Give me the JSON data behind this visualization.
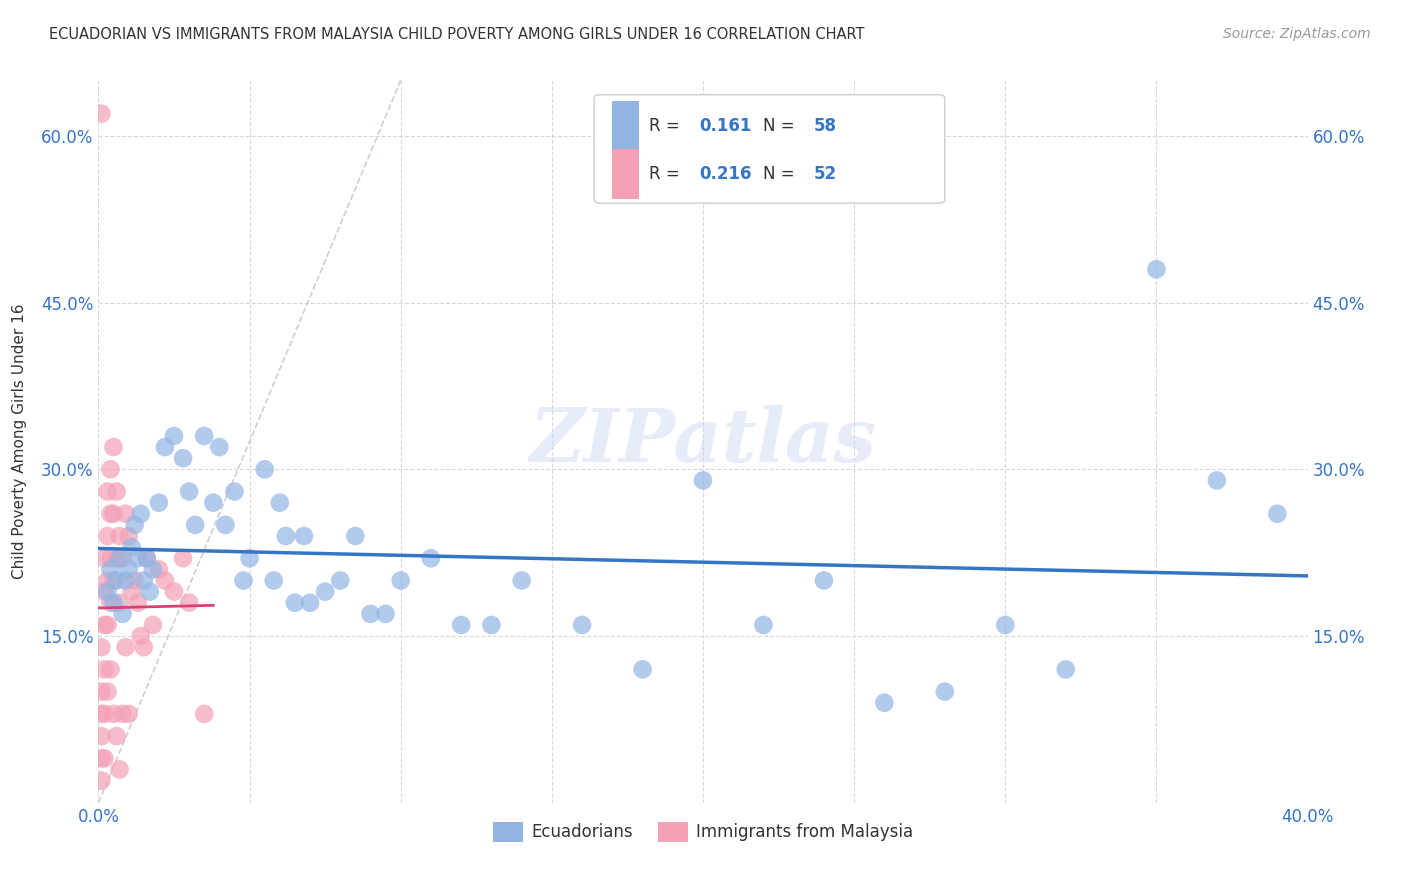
{
  "title": "ECUADORIAN VS IMMIGRANTS FROM MALAYSIA CHILD POVERTY AMONG GIRLS UNDER 16 CORRELATION CHART",
  "source": "Source: ZipAtlas.com",
  "ylabel": "Child Poverty Among Girls Under 16",
  "xlim": [
    0.0,
    0.4
  ],
  "ylim": [
    0.0,
    0.65
  ],
  "xticks": [
    0.0,
    0.05,
    0.1,
    0.15,
    0.2,
    0.25,
    0.3,
    0.35,
    0.4
  ],
  "yticks": [
    0.0,
    0.15,
    0.3,
    0.45,
    0.6
  ],
  "blue_R": "0.161",
  "blue_N": "58",
  "pink_R": "0.216",
  "pink_N": "52",
  "blue_color": "#92b4e3",
  "pink_color": "#f4a0b5",
  "blue_line_color": "#3575c8",
  "pink_line_color": "#d84070",
  "diagonal_color": "#c8c8d8",
  "legend_label_blue": "Ecuadorians",
  "legend_label_pink": "Immigrants from Malaysia",
  "blue_x": [
    0.003,
    0.004,
    0.005,
    0.006,
    0.007,
    0.008,
    0.009,
    0.01,
    0.011,
    0.012,
    0.013,
    0.014,
    0.015,
    0.016,
    0.017,
    0.018,
    0.02,
    0.022,
    0.025,
    0.028,
    0.03,
    0.032,
    0.035,
    0.038,
    0.04,
    0.042,
    0.045,
    0.048,
    0.05,
    0.055,
    0.058,
    0.06,
    0.062,
    0.065,
    0.068,
    0.07,
    0.075,
    0.08,
    0.085,
    0.09,
    0.095,
    0.1,
    0.11,
    0.12,
    0.13,
    0.14,
    0.16,
    0.18,
    0.2,
    0.22,
    0.24,
    0.26,
    0.28,
    0.3,
    0.32,
    0.35,
    0.37,
    0.39
  ],
  "blue_y": [
    0.19,
    0.21,
    0.18,
    0.2,
    0.22,
    0.17,
    0.2,
    0.21,
    0.23,
    0.25,
    0.22,
    0.26,
    0.2,
    0.22,
    0.19,
    0.21,
    0.27,
    0.32,
    0.33,
    0.31,
    0.28,
    0.25,
    0.33,
    0.27,
    0.32,
    0.25,
    0.28,
    0.2,
    0.22,
    0.3,
    0.2,
    0.27,
    0.24,
    0.18,
    0.24,
    0.18,
    0.19,
    0.2,
    0.24,
    0.17,
    0.17,
    0.2,
    0.22,
    0.16,
    0.16,
    0.2,
    0.16,
    0.12,
    0.29,
    0.16,
    0.2,
    0.09,
    0.1,
    0.16,
    0.12,
    0.48,
    0.29,
    0.26
  ],
  "pink_x": [
    0.001,
    0.001,
    0.001,
    0.001,
    0.001,
    0.001,
    0.001,
    0.002,
    0.002,
    0.002,
    0.002,
    0.002,
    0.002,
    0.003,
    0.003,
    0.003,
    0.003,
    0.003,
    0.004,
    0.004,
    0.004,
    0.004,
    0.004,
    0.005,
    0.005,
    0.005,
    0.005,
    0.006,
    0.006,
    0.006,
    0.007,
    0.007,
    0.007,
    0.008,
    0.008,
    0.009,
    0.009,
    0.01,
    0.01,
    0.011,
    0.012,
    0.013,
    0.014,
    0.015,
    0.016,
    0.018,
    0.02,
    0.022,
    0.025,
    0.028,
    0.03,
    0.035
  ],
  "pink_y": [
    0.62,
    0.14,
    0.1,
    0.08,
    0.06,
    0.04,
    0.02,
    0.22,
    0.19,
    0.16,
    0.12,
    0.08,
    0.04,
    0.28,
    0.24,
    0.2,
    0.16,
    0.1,
    0.3,
    0.26,
    0.22,
    0.18,
    0.12,
    0.32,
    0.26,
    0.2,
    0.08,
    0.28,
    0.22,
    0.06,
    0.24,
    0.18,
    0.03,
    0.22,
    0.08,
    0.26,
    0.14,
    0.24,
    0.08,
    0.19,
    0.2,
    0.18,
    0.15,
    0.14,
    0.22,
    0.16,
    0.21,
    0.2,
    0.19,
    0.22,
    0.18,
    0.08
  ],
  "watermark": "ZIPatlas",
  "background_color": "#ffffff",
  "grid_color": "#d8d8e0"
}
